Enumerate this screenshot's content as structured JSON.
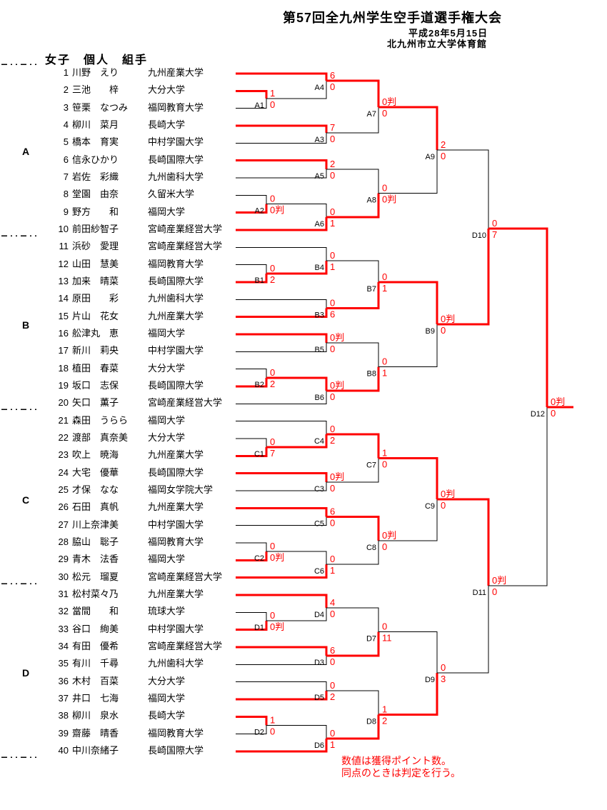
{
  "header": {
    "title": "第57回全九州学生空手道選手権大会",
    "date": "平成28年5月15日",
    "venue": "北九州市立大学体育館"
  },
  "event_title": "女子　個人　組手",
  "sections": [
    "A",
    "B",
    "C",
    "D"
  ],
  "colors": {
    "win_path": "#ff0000",
    "line": "#000000",
    "score_text": "#ff0000",
    "note_text": "#ff0000"
  },
  "players": [
    {
      "no": 1,
      "name": "川野　えり",
      "university": "九州産業大学"
    },
    {
      "no": 2,
      "name": "三池　　梓",
      "university": "大分大学"
    },
    {
      "no": 3,
      "name": "笹栗　なつみ",
      "university": "福岡教育大学"
    },
    {
      "no": 4,
      "name": "柳川　菜月",
      "university": "長崎大学"
    },
    {
      "no": 5,
      "name": "橋本　育実",
      "university": "中村学園大学"
    },
    {
      "no": 6,
      "name": "信永ひかり",
      "university": "長崎国際大学"
    },
    {
      "no": 7,
      "name": "岩佐　彩織",
      "university": "九州歯科大学"
    },
    {
      "no": 8,
      "name": "堂園　由奈",
      "university": "久留米大学"
    },
    {
      "no": 9,
      "name": "野方　　和",
      "university": "福岡大学"
    },
    {
      "no": 10,
      "name": "前田紗智子",
      "university": "宮崎産業経営大学"
    },
    {
      "no": 11,
      "name": "浜砂　愛理",
      "university": "宮崎産業経営大学"
    },
    {
      "no": 12,
      "name": "山田　慧美",
      "university": "福岡教育大学"
    },
    {
      "no": 13,
      "name": "加来　晴菜",
      "university": "長崎国際大学"
    },
    {
      "no": 14,
      "name": "原田　　彩",
      "university": "九州歯科大学"
    },
    {
      "no": 15,
      "name": "片山　花女",
      "university": "九州産業大学"
    },
    {
      "no": 16,
      "name": "舩津丸　恵",
      "university": "福岡大学"
    },
    {
      "no": 17,
      "name": "新川　莉央",
      "university": "中村学園大学"
    },
    {
      "no": 18,
      "name": "植田　春菜",
      "university": "大分大学"
    },
    {
      "no": 19,
      "name": "坂口　志保",
      "university": "長崎国際大学"
    },
    {
      "no": 20,
      "name": "矢口　薫子",
      "university": "宮崎産業経営大学"
    },
    {
      "no": 21,
      "name": "森田　うらら",
      "university": "福岡大学"
    },
    {
      "no": 22,
      "name": "渡部　真奈美",
      "university": "大分大学"
    },
    {
      "no": 23,
      "name": "吹上　暁海",
      "university": "九州産業大学"
    },
    {
      "no": 24,
      "name": "大宅　優華",
      "university": "長崎国際大学"
    },
    {
      "no": 25,
      "name": "才保　なな",
      "university": "福岡女学院大学"
    },
    {
      "no": 26,
      "name": "石田　真帆",
      "university": "九州産業大学"
    },
    {
      "no": 27,
      "name": "川上奈津美",
      "university": "中村学園大学"
    },
    {
      "no": 28,
      "name": "脇山　聡子",
      "university": "福岡教育大学"
    },
    {
      "no": 29,
      "name": "青木　法香",
      "university": "福岡大学"
    },
    {
      "no": 30,
      "name": "松元　瑠夏",
      "university": "宮崎産業経営大学"
    },
    {
      "no": 31,
      "name": "松村菜々乃",
      "university": "九州産業大学"
    },
    {
      "no": 32,
      "name": "當間　　和",
      "university": "琉球大学"
    },
    {
      "no": 33,
      "name": "谷口　絢美",
      "university": "中村学園大学"
    },
    {
      "no": 34,
      "name": "有田　優希",
      "university": "宮崎産業経営大学"
    },
    {
      "no": 35,
      "name": "有川　千尋",
      "university": "九州歯科大学"
    },
    {
      "no": 36,
      "name": "木村　百菜",
      "university": "大分大学"
    },
    {
      "no": 37,
      "name": "井口　七海",
      "university": "福岡大学"
    },
    {
      "no": 38,
      "name": "柳川　泉水",
      "university": "長崎大学"
    },
    {
      "no": 39,
      "name": "齋藤　晴香",
      "university": "福岡教育大学"
    },
    {
      "no": 40,
      "name": "中川奈緒子",
      "university": "長崎国際大学"
    }
  ],
  "matches": [
    {
      "id": "A1",
      "label": "A1",
      "top": "P2",
      "bottom": "P3",
      "top_score": "1",
      "bottom_score": "0"
    },
    {
      "id": "A2",
      "label": "A2",
      "top": "P8",
      "bottom": "P9",
      "top_score": "0",
      "bottom_score": "0判"
    },
    {
      "id": "A3",
      "label": "A3",
      "top": "P4",
      "bottom": "P5",
      "top_score": "7",
      "bottom_score": "0"
    },
    {
      "id": "A4",
      "label": "A4",
      "top": "P1",
      "bottom": "A1",
      "top_score": "6",
      "bottom_score": "0"
    },
    {
      "id": "A5",
      "label": "A5",
      "top": "P6",
      "bottom": "P7",
      "top_score": "2",
      "bottom_score": "0"
    },
    {
      "id": "A6",
      "label": "A6",
      "top": "A2",
      "bottom": "P10",
      "top_score": "0",
      "bottom_score": "1"
    },
    {
      "id": "A7",
      "label": "A7",
      "top": "A4",
      "bottom": "A3",
      "top_score": "0判",
      "bottom_score": "0"
    },
    {
      "id": "A8",
      "label": "A8",
      "top": "A5",
      "bottom": "A6",
      "top_score": "0",
      "bottom_score": "0判"
    },
    {
      "id": "A9",
      "label": "A9",
      "top": "A7",
      "bottom": "A8",
      "top_score": "2",
      "bottom_score": "0"
    },
    {
      "id": "B1",
      "label": "B1",
      "top": "P12",
      "bottom": "P13",
      "top_score": "0",
      "bottom_score": "2"
    },
    {
      "id": "B2",
      "label": "B2",
      "top": "P18",
      "bottom": "P19",
      "top_score": "0",
      "bottom_score": "2"
    },
    {
      "id": "B3",
      "label": "B3",
      "top": "P14",
      "bottom": "P15",
      "top_score": "0",
      "bottom_score": "6"
    },
    {
      "id": "B4",
      "label": "B4",
      "top": "P11",
      "bottom": "B1",
      "top_score": "0",
      "bottom_score": "1"
    },
    {
      "id": "B5",
      "label": "B5",
      "top": "P16",
      "bottom": "P17",
      "top_score": "0判",
      "bottom_score": "0"
    },
    {
      "id": "B6",
      "label": "B6",
      "top": "B2",
      "bottom": "P20",
      "top_score": "0判",
      "bottom_score": "0"
    },
    {
      "id": "B7",
      "label": "B7",
      "top": "B4",
      "bottom": "B3",
      "top_score": "0",
      "bottom_score": "1"
    },
    {
      "id": "B8",
      "label": "B8",
      "top": "B5",
      "bottom": "B6",
      "top_score": "0",
      "bottom_score": "1"
    },
    {
      "id": "B9",
      "label": "B9",
      "top": "B7",
      "bottom": "B8",
      "top_score": "0判",
      "bottom_score": "0"
    },
    {
      "id": "C1",
      "label": "C1",
      "top": "P22",
      "bottom": "P23",
      "top_score": "0",
      "bottom_score": "7"
    },
    {
      "id": "C2",
      "label": "C2",
      "top": "P28",
      "bottom": "P29",
      "top_score": "0",
      "bottom_score": "0判"
    },
    {
      "id": "C3",
      "label": "C3",
      "top": "P24",
      "bottom": "P25",
      "top_score": "0判",
      "bottom_score": "0"
    },
    {
      "id": "C4",
      "label": "C4",
      "top": "P21",
      "bottom": "C1",
      "top_score": "0",
      "bottom_score": "2"
    },
    {
      "id": "C5",
      "label": "C5",
      "top": "P26",
      "bottom": "P27",
      "top_score": "6",
      "bottom_score": "0"
    },
    {
      "id": "C6",
      "label": "C6",
      "top": "C2",
      "bottom": "P30",
      "top_score": "0",
      "bottom_score": "1"
    },
    {
      "id": "C7",
      "label": "C7",
      "top": "C4",
      "bottom": "C3",
      "top_score": "1",
      "bottom_score": "0"
    },
    {
      "id": "C8",
      "label": "C8",
      "top": "C5",
      "bottom": "C6",
      "top_score": "0判",
      "bottom_score": "0"
    },
    {
      "id": "C9",
      "label": "C9",
      "top": "C7",
      "bottom": "C8",
      "top_score": "0判",
      "bottom_score": "0"
    },
    {
      "id": "D1",
      "label": "D1",
      "top": "P32",
      "bottom": "P33",
      "top_score": "0",
      "bottom_score": "0判"
    },
    {
      "id": "D2",
      "label": "D2",
      "top": "P38",
      "bottom": "P39",
      "top_score": "1",
      "bottom_score": "0"
    },
    {
      "id": "D3",
      "label": "D3",
      "top": "P34",
      "bottom": "P35",
      "top_score": "6",
      "bottom_score": "0"
    },
    {
      "id": "D4",
      "label": "D4",
      "top": "P31",
      "bottom": "D1",
      "top_score": "4",
      "bottom_score": "0"
    },
    {
      "id": "D5",
      "label": "D5",
      "top": "P36",
      "bottom": "P37",
      "top_score": "0",
      "bottom_score": "2"
    },
    {
      "id": "D6",
      "label": "D6",
      "top": "D2",
      "bottom": "P40",
      "top_score": "0",
      "bottom_score": "1"
    },
    {
      "id": "D7",
      "label": "D7",
      "top": "D4",
      "bottom": "D3",
      "top_score": "0",
      "bottom_score": "11"
    },
    {
      "id": "D8",
      "label": "D8",
      "top": "D5",
      "bottom": "D6",
      "top_score": "1",
      "bottom_score": "2"
    },
    {
      "id": "D9",
      "label": "D9",
      "top": "D7",
      "bottom": "D8",
      "top_score": "0",
      "bottom_score": "3"
    },
    {
      "id": "D10",
      "label": "D10",
      "top": "A9",
      "bottom": "B9",
      "top_score": "0",
      "bottom_score": "7"
    },
    {
      "id": "D11",
      "label": "D11",
      "top": "C9",
      "bottom": "D9",
      "top_score": "0判",
      "bottom_score": "0"
    },
    {
      "id": "D12",
      "label": "D12",
      "top": "D10",
      "bottom": "D11",
      "top_score": "0判",
      "bottom_score": "0"
    }
  ],
  "notes": [
    "数値は獲得ポイント数。",
    "同点のときは判定を行う。"
  ]
}
